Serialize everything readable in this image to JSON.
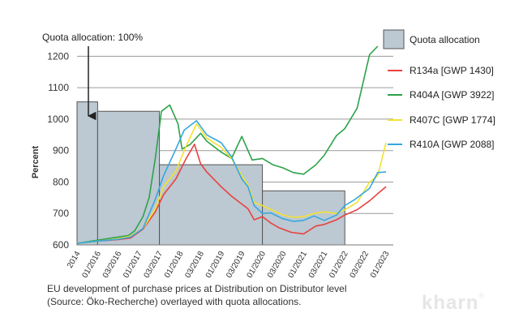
{
  "chart_data": {
    "type": "line",
    "ylabel": "Percent",
    "ylim": [
      600,
      1250
    ],
    "yticks": [
      600,
      700,
      800,
      900,
      1000,
      1100,
      1200
    ],
    "x_ticks": [
      "2014",
      "01/2016",
      "03/2016",
      "01/2017",
      "03/2017",
      "01/2018",
      "03/2018",
      "01/2019",
      "03/2019",
      "01/2020",
      "03/2020",
      "01/2021",
      "03/2021",
      "01/2022",
      "03/2022",
      "01/2023"
    ],
    "grid": "horizontal",
    "annotation": "Quota allocation: 100%",
    "quota": {
      "name": "Quota allocation",
      "steps": [
        {
          "from": 0,
          "to": 1,
          "value": 1055
        },
        {
          "from": 1,
          "to": 4,
          "value": 1025
        },
        {
          "from": 4,
          "to": 9,
          "value": 855
        },
        {
          "from": 9,
          "to": 13,
          "value": 772
        }
      ]
    },
    "series": [
      {
        "name": "R134a [GWP 1430]",
        "color": "#e8423f",
        "points": [
          [
            0,
            605
          ],
          [
            1,
            612
          ],
          [
            2,
            617
          ],
          [
            2.6,
            622
          ],
          [
            3.2,
            650
          ],
          [
            3.8,
            705
          ],
          [
            4.2,
            760
          ],
          [
            4.8,
            810
          ],
          [
            5.3,
            875
          ],
          [
            5.7,
            920
          ],
          [
            6.0,
            858
          ],
          [
            6.3,
            832
          ],
          [
            7.0,
            785
          ],
          [
            7.5,
            755
          ],
          [
            8.0,
            730
          ],
          [
            8.3,
            715
          ],
          [
            8.6,
            680
          ],
          [
            9.0,
            690
          ],
          [
            9.4,
            670
          ],
          [
            9.8,
            655
          ],
          [
            10.4,
            640
          ],
          [
            11.0,
            635
          ],
          [
            11.6,
            660
          ],
          [
            12.0,
            665
          ],
          [
            12.6,
            680
          ],
          [
            13.0,
            695
          ],
          [
            13.6,
            712
          ],
          [
            14.2,
            740
          ],
          [
            14.6,
            763
          ],
          [
            15.0,
            785
          ]
        ]
      },
      {
        "name": "R404A [GWP 3922]",
        "color": "#2ca24a",
        "points": [
          [
            0,
            605
          ],
          [
            1,
            615
          ],
          [
            2,
            625
          ],
          [
            2.5,
            630
          ],
          [
            2.8,
            645
          ],
          [
            3.2,
            690
          ],
          [
            3.5,
            750
          ],
          [
            3.8,
            875
          ],
          [
            4.1,
            1025
          ],
          [
            4.5,
            1045
          ],
          [
            4.9,
            985
          ],
          [
            5.1,
            905
          ],
          [
            5.5,
            920
          ],
          [
            6.0,
            955
          ],
          [
            6.3,
            930
          ],
          [
            7.0,
            895
          ],
          [
            7.5,
            875
          ],
          [
            8.0,
            945
          ],
          [
            8.5,
            870
          ],
          [
            9.0,
            875
          ],
          [
            9.5,
            855
          ],
          [
            10.0,
            845
          ],
          [
            10.5,
            830
          ],
          [
            11.0,
            825
          ],
          [
            11.6,
            855
          ],
          [
            12.0,
            885
          ],
          [
            12.6,
            948
          ],
          [
            13.0,
            970
          ],
          [
            13.6,
            1035
          ],
          [
            14.2,
            1205
          ],
          [
            14.6,
            1232
          ]
        ]
      },
      {
        "name": "R407C [GWP 1774]",
        "color": "#f2e231",
        "points": [
          [
            0,
            605
          ],
          [
            1,
            612
          ],
          [
            2,
            620
          ],
          [
            2.6,
            628
          ],
          [
            3.2,
            652
          ],
          [
            3.8,
            715
          ],
          [
            4.2,
            785
          ],
          [
            4.8,
            835
          ],
          [
            5.3,
            915
          ],
          [
            5.8,
            985
          ],
          [
            6.3,
            940
          ],
          [
            7.0,
            910
          ],
          [
            7.5,
            875
          ],
          [
            8.0,
            820
          ],
          [
            8.3,
            790
          ],
          [
            8.6,
            735
          ],
          [
            9.0,
            725
          ],
          [
            9.5,
            710
          ],
          [
            10.0,
            695
          ],
          [
            10.5,
            688
          ],
          [
            11.0,
            690
          ],
          [
            11.5,
            700
          ],
          [
            12.0,
            705
          ],
          [
            12.6,
            700
          ],
          [
            13.0,
            712
          ],
          [
            13.6,
            735
          ],
          [
            14.2,
            800
          ],
          [
            14.6,
            820
          ],
          [
            15.0,
            925
          ]
        ]
      },
      {
        "name": "R410A [GWP 2088]",
        "color": "#34a8e0",
        "points": [
          [
            0,
            605
          ],
          [
            1,
            612
          ],
          [
            2,
            618
          ],
          [
            2.6,
            625
          ],
          [
            3.2,
            652
          ],
          [
            3.8,
            745
          ],
          [
            4.2,
            820
          ],
          [
            4.8,
            905
          ],
          [
            5.2,
            965
          ],
          [
            5.8,
            995
          ],
          [
            6.3,
            950
          ],
          [
            7.0,
            925
          ],
          [
            7.5,
            880
          ],
          [
            8.0,
            810
          ],
          [
            8.3,
            785
          ],
          [
            8.6,
            725
          ],
          [
            9.0,
            700
          ],
          [
            9.4,
            702
          ],
          [
            10.0,
            683
          ],
          [
            10.5,
            675
          ],
          [
            11.0,
            678
          ],
          [
            11.5,
            692
          ],
          [
            12.0,
            678
          ],
          [
            12.6,
            695
          ],
          [
            13.0,
            725
          ],
          [
            13.5,
            745
          ],
          [
            14.2,
            780
          ],
          [
            14.6,
            830
          ],
          [
            15.0,
            832
          ]
        ]
      }
    ]
  },
  "caption": {
    "line1": "EU development of purchase prices at Distribution on Distributor level",
    "line2": "(Source: Öko-Recherche) overlayed with quota allocations."
  },
  "watermark": {
    "text": "kharn",
    "mark": "®"
  }
}
